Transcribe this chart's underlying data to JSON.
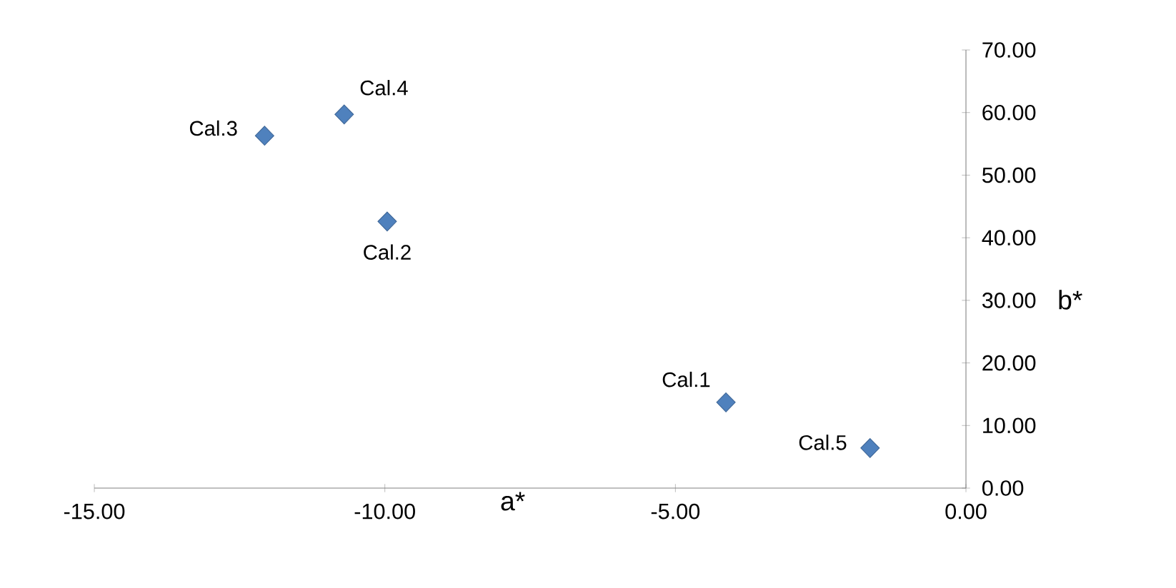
{
  "chart_data": {
    "type": "scatter",
    "xlabel": "a*",
    "ylabel": "b*",
    "x": [
      -4.13,
      -9.96,
      -12.07,
      -10.7,
      -1.65
    ],
    "series": [
      {
        "color": "#4f81bd",
        "values": [
          13.7,
          42.6,
          56.3,
          59.7,
          6.4
        ]
      }
    ],
    "marker": "diamond",
    "xlim": [
      -15,
      0
    ],
    "ylim": [
      0,
      70
    ],
    "xticks": [
      {
        "value": -15,
        "label": "-15.00"
      },
      {
        "value": -10,
        "label": "-10.00"
      },
      {
        "value": -5,
        "label": "-5.00"
      },
      {
        "value": 0,
        "label": "0.00"
      }
    ],
    "yticks": [
      {
        "value": 0,
        "label": "0.00"
      },
      {
        "value": 10,
        "label": "10.00"
      },
      {
        "value": 20,
        "label": "20.00"
      },
      {
        "value": 30,
        "label": "30.00"
      },
      {
        "value": 40,
        "label": "40.00"
      },
      {
        "value": 50,
        "label": "50.00"
      },
      {
        "value": 60,
        "label": "60.00"
      },
      {
        "value": 70,
        "label": "70.00"
      }
    ],
    "annotations": [
      {
        "text": "Cal.1",
        "x": -4.13,
        "y": 13.7
      },
      {
        "text": "Cal.2",
        "x": -9.96,
        "y": 42.6
      },
      {
        "text": "Cal.3",
        "x": -12.07,
        "y": 56.3
      },
      {
        "text": "Cal.4",
        "x": -10.7,
        "y": 59.7
      },
      {
        "text": "Cal.5",
        "x": -1.65,
        "y": 6.4
      }
    ]
  }
}
